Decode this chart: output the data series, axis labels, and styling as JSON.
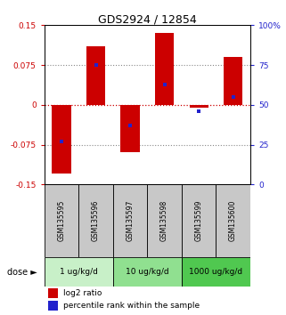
{
  "title": "GDS2924 / 12854",
  "samples": [
    "GSM135595",
    "GSM135596",
    "GSM135597",
    "GSM135598",
    "GSM135599",
    "GSM135600"
  ],
  "log2_ratio": [
    -0.13,
    0.11,
    -0.09,
    0.135,
    -0.005,
    0.09
  ],
  "percentile_rank": [
    27,
    75,
    37,
    63,
    46,
    55
  ],
  "ylim": [
    -0.15,
    0.15
  ],
  "yticks_left": [
    -0.15,
    -0.075,
    0,
    0.075,
    0.15
  ],
  "yticks_right_vals": [
    0,
    25,
    50,
    75,
    100
  ],
  "yticks_right_labels": [
    "0",
    "25",
    "50",
    "75",
    "100%"
  ],
  "bar_color": "#cc0000",
  "dot_color": "#2222cc",
  "bar_width": 0.55,
  "sample_bg_color": "#c8c8c8",
  "dose_bg_colors": [
    "#c8f0c8",
    "#90e090",
    "#50c850"
  ],
  "dose_labels": [
    "1 ug/kg/d",
    "10 ug/kg/d",
    "1000 ug/kg/d"
  ],
  "left_tick_color": "#cc0000",
  "right_tick_color": "#2222cc",
  "hline0_color": "#cc0000",
  "hgrid_color": "#888888"
}
